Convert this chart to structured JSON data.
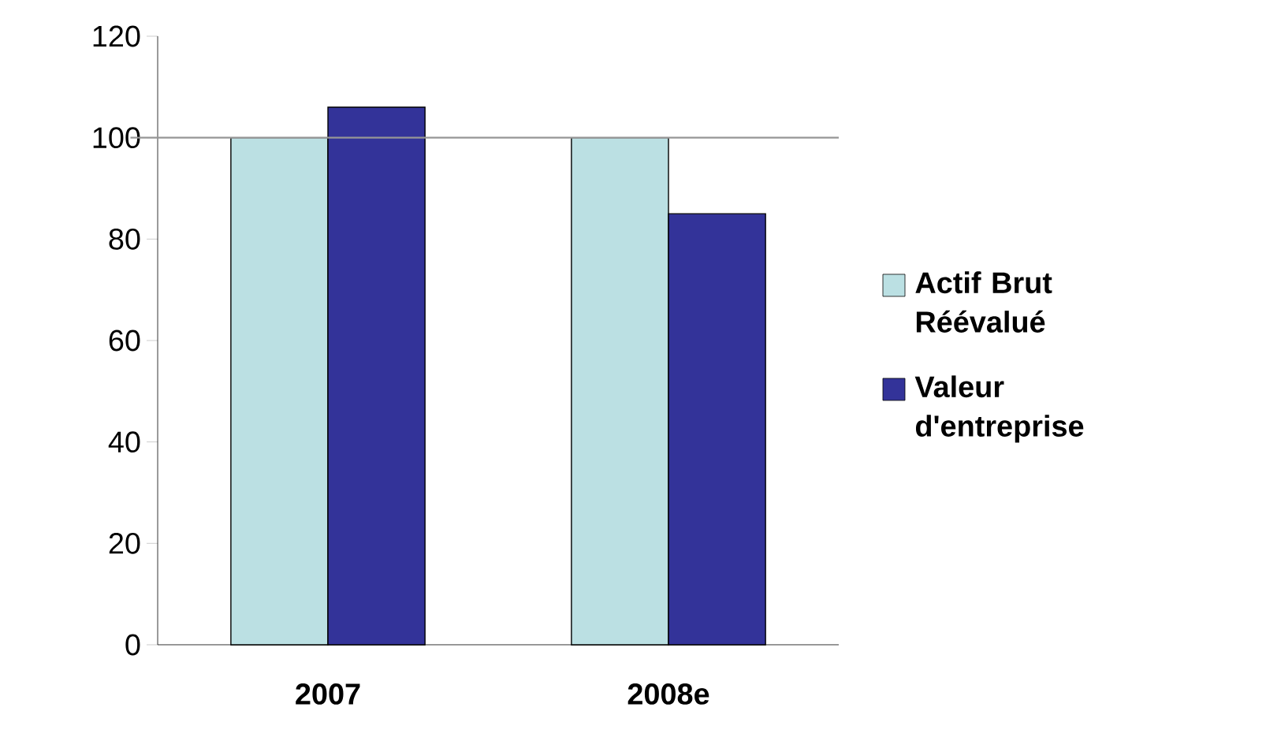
{
  "chart_data": {
    "type": "bar",
    "categories": [
      "2007",
      "2008e"
    ],
    "series": [
      {
        "name": "Actif Brut Réévalué",
        "color": "#bbe0e3",
        "values": [
          100,
          100
        ]
      },
      {
        "name": "Valeur d'entreprise",
        "color": "#333399",
        "values": [
          106,
          85
        ]
      }
    ],
    "ylim": [
      0,
      120
    ],
    "yticks": [
      0,
      20,
      40,
      60,
      80,
      100,
      120
    ],
    "ref_lines": [
      {
        "axis": "y",
        "value": 100,
        "color": "#969696"
      }
    ],
    "legend": "right"
  }
}
